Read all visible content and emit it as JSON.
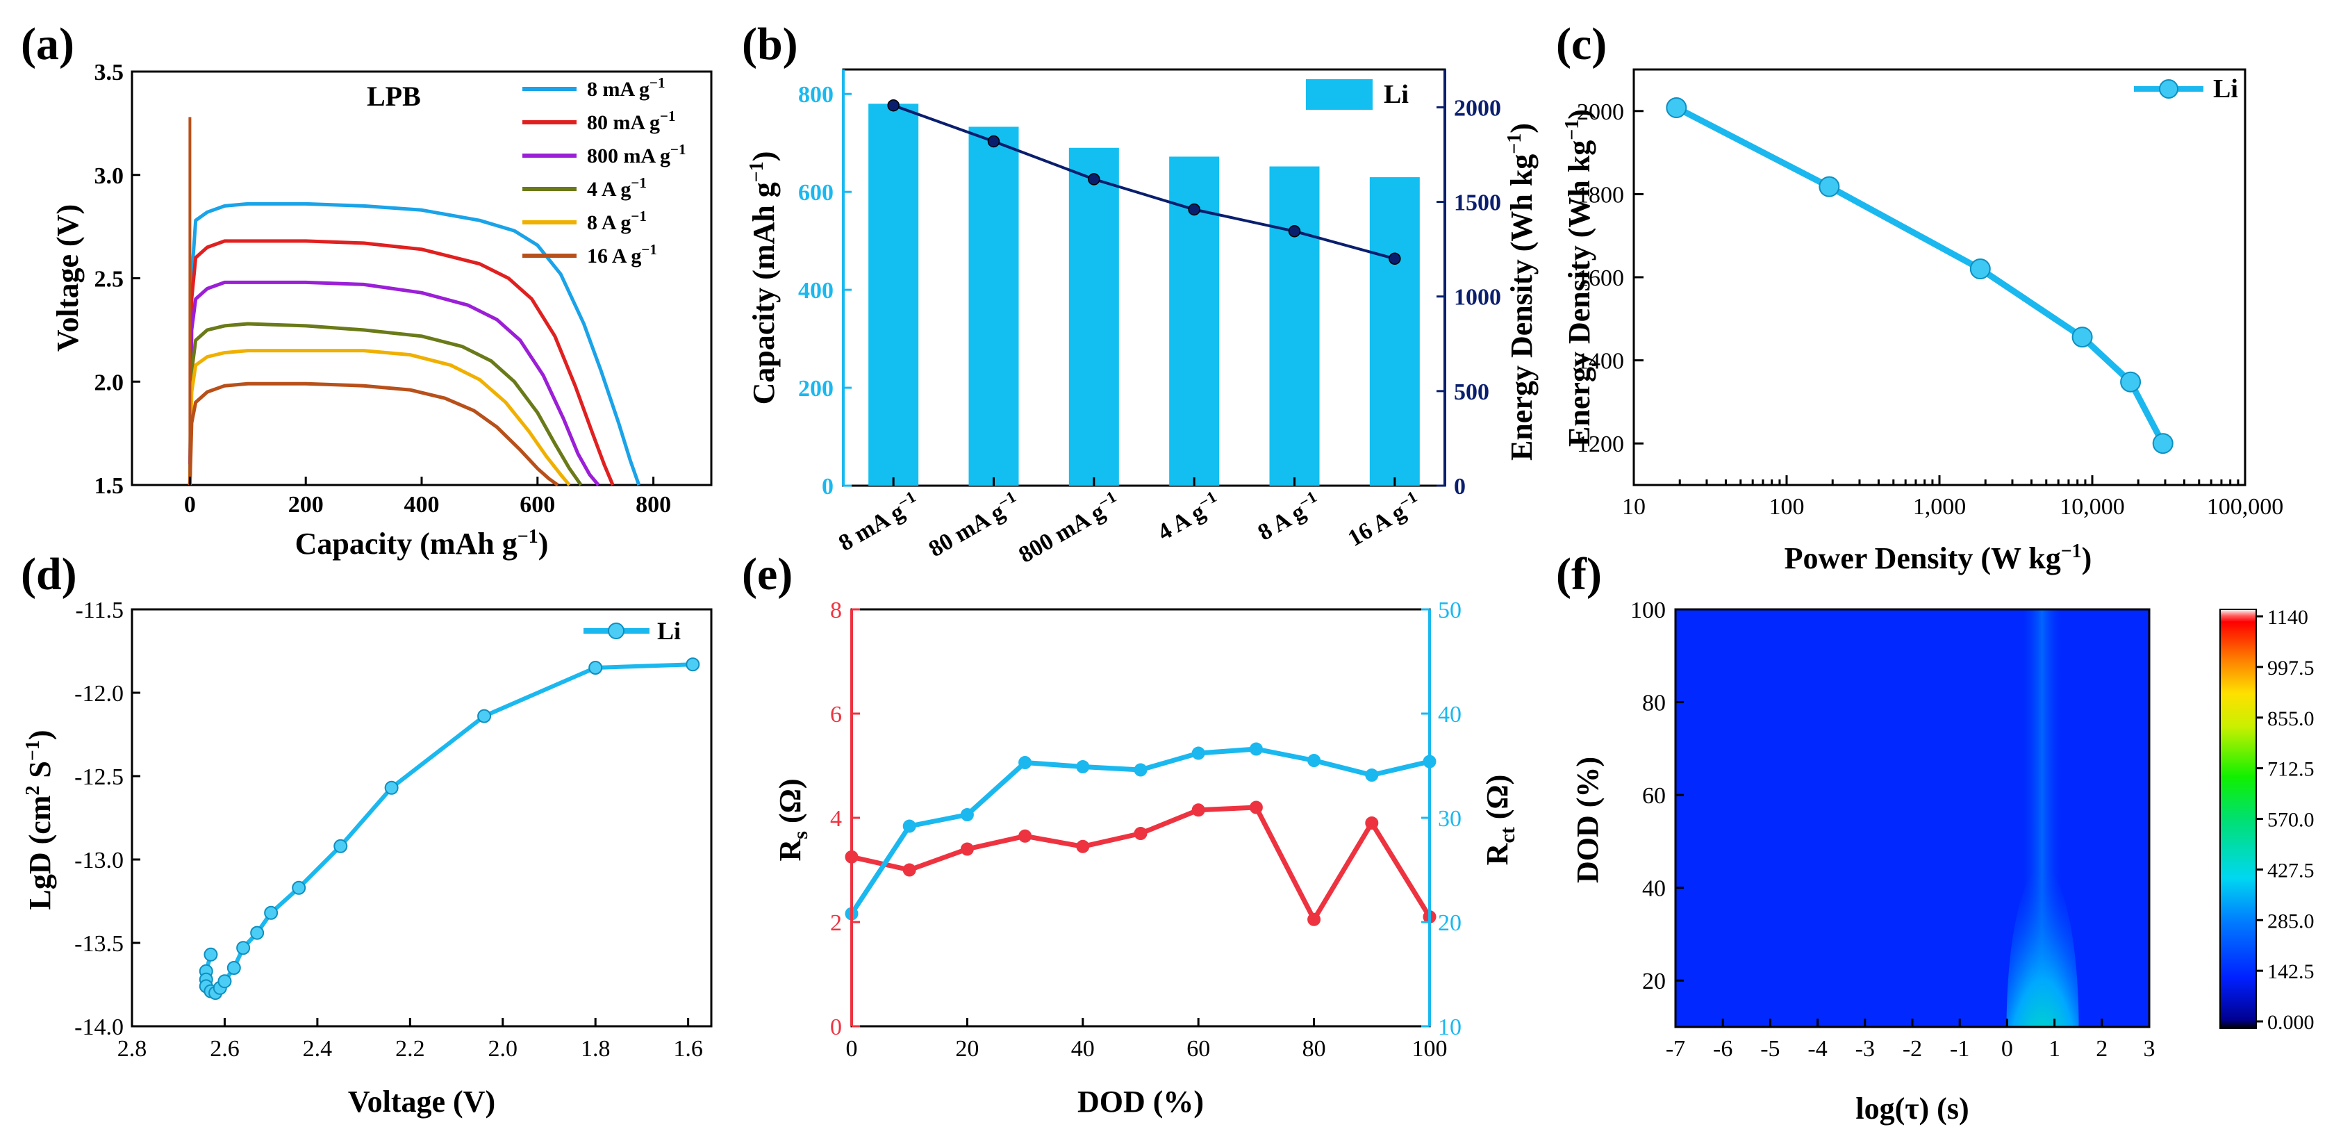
{
  "chart_data": [
    {
      "panel": "(a)",
      "type": "line",
      "annotation": "LPB",
      "xlabel": "Capacity (mAh g⁻¹)",
      "ylabel": "Voltage (V)",
      "xlim": [
        -100,
        900
      ],
      "ylim": [
        1.5,
        3.5
      ],
      "xticks": [
        "0",
        "200",
        "400",
        "600",
        "800"
      ],
      "yticks": [
        "1.5",
        "2.0",
        "2.5",
        "3.0",
        "3.5"
      ],
      "legend_position": "top-right",
      "series": [
        {
          "name": "8 mA g⁻¹",
          "color": "#1aa3e8",
          "x": [
            0,
            3,
            10,
            30,
            60,
            100,
            200,
            300,
            400,
            500,
            560,
            600,
            640,
            680,
            710,
            740,
            760,
            775
          ],
          "y": [
            1.5,
            2.5,
            2.78,
            2.82,
            2.85,
            2.86,
            2.86,
            2.85,
            2.83,
            2.78,
            2.73,
            2.66,
            2.52,
            2.28,
            2.05,
            1.8,
            1.62,
            1.5
          ]
        },
        {
          "name": "80 mA g⁻¹",
          "color": "#e02020",
          "x": [
            0,
            3,
            10,
            30,
            60,
            100,
            200,
            300,
            400,
            500,
            550,
            590,
            630,
            665,
            695,
            715,
            730
          ],
          "y": [
            1.5,
            2.4,
            2.6,
            2.65,
            2.68,
            2.68,
            2.68,
            2.67,
            2.64,
            2.57,
            2.5,
            2.4,
            2.22,
            1.98,
            1.75,
            1.6,
            1.5
          ]
        },
        {
          "name": "800 mA g⁻¹",
          "color": "#9b1fd6",
          "x": [
            0,
            3,
            10,
            30,
            60,
            100,
            200,
            300,
            400,
            480,
            530,
            570,
            610,
            645,
            670,
            690,
            705
          ],
          "y": [
            1.5,
            2.25,
            2.4,
            2.45,
            2.48,
            2.48,
            2.48,
            2.47,
            2.43,
            2.37,
            2.3,
            2.2,
            2.03,
            1.82,
            1.65,
            1.55,
            1.5
          ]
        },
        {
          "name": "4 A g⁻¹",
          "color": "#6b7a18",
          "x": [
            0,
            3,
            10,
            30,
            60,
            100,
            200,
            300,
            400,
            470,
            520,
            560,
            600,
            630,
            655,
            675
          ],
          "y": [
            1.5,
            2.05,
            2.2,
            2.25,
            2.27,
            2.28,
            2.27,
            2.25,
            2.22,
            2.17,
            2.1,
            2.0,
            1.85,
            1.7,
            1.58,
            1.5
          ]
        },
        {
          "name": "8 A g⁻¹",
          "color": "#f0b000",
          "x": [
            0,
            3,
            10,
            30,
            60,
            100,
            200,
            300,
            380,
            450,
            500,
            545,
            585,
            615,
            640,
            655
          ],
          "y": [
            1.5,
            1.95,
            2.08,
            2.12,
            2.14,
            2.15,
            2.15,
            2.15,
            2.13,
            2.08,
            2.01,
            1.9,
            1.76,
            1.64,
            1.55,
            1.5
          ]
        },
        {
          "name": "16 A g⁻¹",
          "color": "#b8501a",
          "x": [
            0,
            3,
            10,
            30,
            60,
            100,
            200,
            300,
            380,
            440,
            490,
            530,
            570,
            600,
            620,
            635
          ],
          "y": [
            1.5,
            1.8,
            1.9,
            1.95,
            1.98,
            1.99,
            1.99,
            1.98,
            1.96,
            1.92,
            1.86,
            1.78,
            1.67,
            1.58,
            1.53,
            1.5
          ]
        }
      ],
      "spike": {
        "x": 0,
        "y": [
          1.6,
          3.28
        ]
      }
    },
    {
      "panel": "(b)",
      "type": "bar",
      "categories": [
        "8 mA g⁻¹",
        "80 mA g⁻¹",
        "800 mA g⁻¹",
        "4 A g⁻¹",
        "8 A g⁻¹",
        "16 A g⁻¹"
      ],
      "ylabel": "Capacity (mAh g⁻¹)",
      "ylabel_right": "Energy Density (Wh kg⁻¹)",
      "ylim": [
        0,
        850
      ],
      "ylim_right": [
        0,
        2200
      ],
      "yticks": [
        "0",
        "200",
        "400",
        "600",
        "800"
      ],
      "yticks_right": [
        "0",
        "500",
        "1000",
        "1500",
        "2000"
      ],
      "legend_position": "top-right",
      "series": [
        {
          "name": "Li",
          "axis": "left",
          "kind": "bar",
          "color": "#13bff0",
          "values": [
            780,
            733,
            690,
            672,
            652,
            630
          ]
        },
        {
          "axis": "right",
          "kind": "line",
          "color": "#0a1e6e",
          "values": [
            2010,
            1820,
            1620,
            1460,
            1345,
            1200
          ]
        }
      ]
    },
    {
      "panel": "(c)",
      "type": "line",
      "xlabel": "Power Density (W kg⁻¹)",
      "ylabel": "Energy Density (Wh kg⁻¹)",
      "xscale": "log",
      "xlim": [
        10,
        100000
      ],
      "ylim": [
        1100,
        2100
      ],
      "xticks": [
        "10",
        "100",
        "1,000",
        "10,000",
        "100,000"
      ],
      "yticks": [
        "1200",
        "1400",
        "1600",
        "1800",
        "2000"
      ],
      "legend_position": "top-right",
      "series": [
        {
          "name": "Li",
          "color": "#1ab8ef",
          "x": [
            19,
            190,
            1850,
            8600,
            17800,
            29000
          ],
          "y": [
            2008,
            1818,
            1620,
            1456,
            1348,
            1200
          ]
        }
      ]
    },
    {
      "panel": "(d)",
      "type": "line",
      "xlabel": "Voltage (V)",
      "ylabel": "LgD (cm² S⁻¹)",
      "xlim": [
        2.8,
        1.55
      ],
      "ylim": [
        -14.0,
        -11.5
      ],
      "xticks": [
        "2.8",
        "2.6",
        "2.4",
        "2.2",
        "2.0",
        "1.8",
        "1.6"
      ],
      "yticks": [
        "-11.5",
        "-12.0",
        "-12.5",
        "-13.0",
        "-13.5",
        "-14.0"
      ],
      "legend_position": "top-right",
      "series": [
        {
          "name": "Li",
          "color": "#1ab8ef",
          "x": [
            2.63,
            2.64,
            2.64,
            2.64,
            2.63,
            2.62,
            2.61,
            2.6,
            2.58,
            2.56,
            2.53,
            2.5,
            2.44,
            2.35,
            2.24,
            2.04,
            1.8,
            1.59
          ],
          "y": [
            -13.57,
            -13.67,
            -13.72,
            -13.76,
            -13.79,
            -13.8,
            -13.77,
            -13.73,
            -13.65,
            -13.53,
            -13.44,
            -13.32,
            -13.17,
            -12.92,
            -12.57,
            -12.14,
            -11.85,
            -11.83
          ]
        }
      ]
    },
    {
      "panel": "(e)",
      "type": "line",
      "xlabel": "DOD (%)",
      "ylabel": "Rₛ (Ω)",
      "ylabel_right": "Rₑₜ (Ω)",
      "xlim": [
        0,
        100
      ],
      "ylim": [
        0,
        8
      ],
      "ylim_right": [
        10,
        50
      ],
      "xticks": [
        "0",
        "20",
        "40",
        "60",
        "80",
        "100"
      ],
      "yticks": [
        "0",
        "2",
        "4",
        "6",
        "8"
      ],
      "yticks_right": [
        "10",
        "20",
        "30",
        "40",
        "50"
      ],
      "series": [
        {
          "axis": "left",
          "color": "#ee3340",
          "x": [
            0,
            10,
            20,
            30,
            40,
            50,
            60,
            70,
            80,
            90,
            100
          ],
          "y": [
            3.25,
            3.0,
            3.4,
            3.65,
            3.45,
            3.7,
            4.15,
            4.2,
            2.05,
            3.9,
            2.1
          ]
        },
        {
          "axis": "right",
          "color": "#1ab8ef",
          "x": [
            0,
            10,
            20,
            30,
            40,
            50,
            60,
            70,
            80,
            90,
            100
          ],
          "y": [
            20.8,
            29.2,
            30.3,
            35.3,
            34.9,
            34.6,
            36.2,
            36.6,
            35.5,
            34.1,
            35.4
          ]
        }
      ]
    },
    {
      "panel": "(f)",
      "type": "heatmap",
      "xlabel": "log(τ) (s)",
      "ylabel": "DOD (%)",
      "xlim": [
        -7,
        3
      ],
      "ylim": [
        10,
        100
      ],
      "xticks": [
        "-7",
        "-6",
        "-5",
        "-4",
        "-3",
        "-2",
        "-1",
        "0",
        "1",
        "2",
        "3"
      ],
      "yticks": [
        "20",
        "40",
        "60",
        "80",
        "100"
      ],
      "colorbar_ticks": [
        "1140",
        "997.5",
        "855.0",
        "712.5",
        "570.0",
        "427.5",
        "285.0",
        "142.5",
        "0.000"
      ],
      "colorbar_range": [
        0,
        1140
      ],
      "peak": {
        "log_tau": 0.75,
        "dod_min": 10,
        "dod_max": 100,
        "max_value": 1140
      }
    }
  ]
}
